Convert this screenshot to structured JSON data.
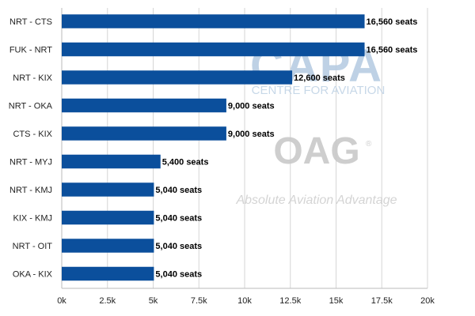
{
  "chart_data": {
    "type": "bar",
    "orientation": "horizontal",
    "categories": [
      "NRT - CTS",
      "FUK - NRT",
      "NRT - KIX",
      "NRT - OKA",
      "CTS - KIX",
      "NRT - MYJ",
      "NRT - KMJ",
      "KIX - KMJ",
      "NRT - OIT",
      "OKA - KIX"
    ],
    "values": [
      16560,
      16560,
      12600,
      9000,
      9000,
      5400,
      5040,
      5040,
      5040,
      5040
    ],
    "data_labels": [
      "16,560 seats",
      "16,560 seats",
      "12,600 seats",
      "9,000 seats",
      "9,000 seats",
      "5,400 seats",
      "5,040 seats",
      "5,040 seats",
      "5,040 seats",
      "5,040 seats"
    ],
    "x_ticks": [
      0,
      2500,
      5000,
      7500,
      10000,
      12500,
      15000,
      17500,
      20000
    ],
    "x_tick_labels": [
      "0k",
      "2.5k",
      "5k",
      "7.5k",
      "10k",
      "12.5k",
      "15k",
      "17.5k",
      "20k"
    ],
    "xlim": [
      0,
      20000
    ],
    "grid": true,
    "bar_color": "#0b4f9c",
    "title": "",
    "xlabel": "",
    "ylabel": ""
  },
  "watermarks": {
    "capa_logo": "CAPA",
    "capa_sub": "CENTRE FOR AVIATION",
    "oag_logo": "OAG",
    "oag_reg": "®",
    "oag_tagline": "Absolute Aviation Advantage"
  }
}
